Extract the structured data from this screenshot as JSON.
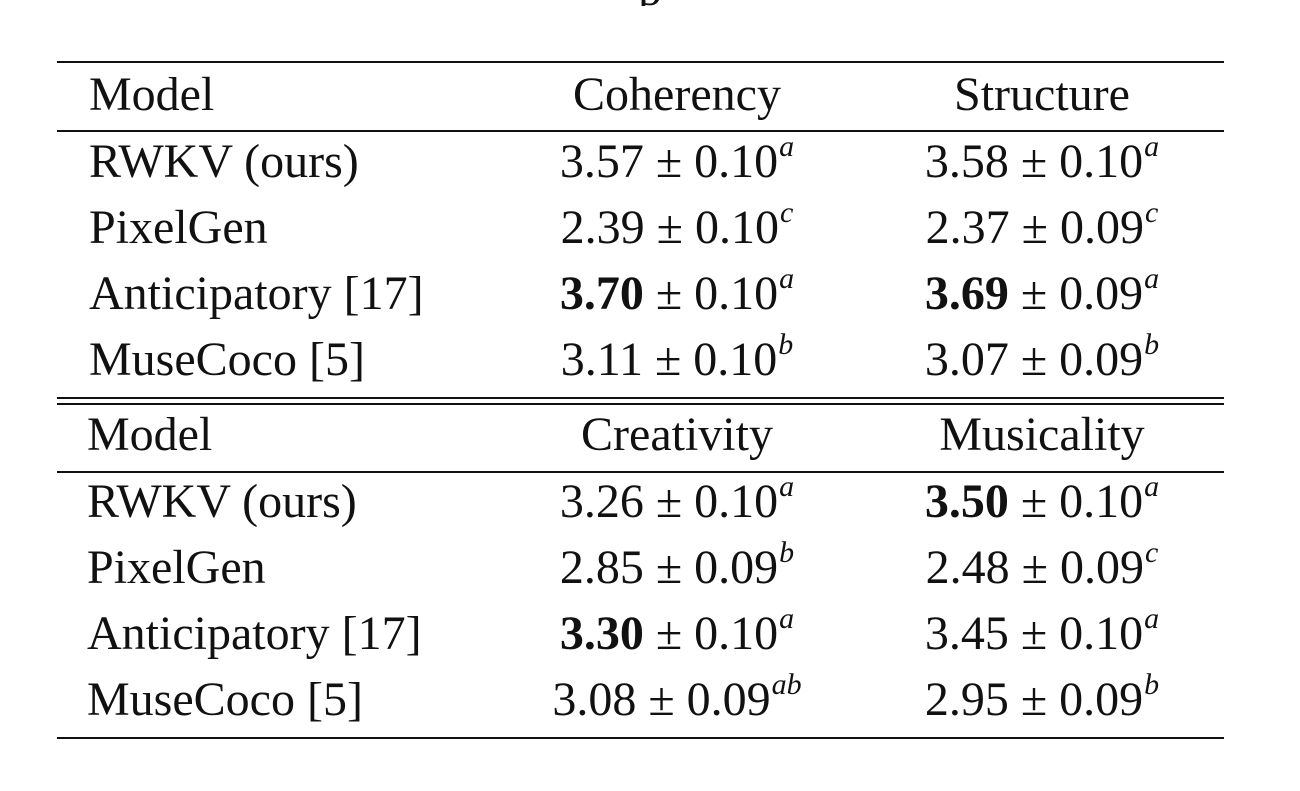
{
  "caption_fragment": "p",
  "tables": [
    {
      "headers": [
        "Model",
        "Coherency",
        "Structure"
      ],
      "rows": [
        {
          "model": "RWKV (ours)",
          "cells": [
            {
              "bold": "",
              "value": "3.57 ± 0.10",
              "sup": "a"
            },
            {
              "bold": "",
              "value": "3.58 ± 0.10",
              "sup": "a"
            }
          ]
        },
        {
          "model": "PixelGen",
          "cells": [
            {
              "bold": "",
              "value": "2.39 ± 0.10",
              "sup": "c"
            },
            {
              "bold": "",
              "value": "2.37 ± 0.09",
              "sup": "c"
            }
          ]
        },
        {
          "model": "Anticipatory [17]",
          "cells": [
            {
              "bold": "3.70",
              "value": " ± 0.10",
              "sup": "a"
            },
            {
              "bold": "3.69",
              "value": " ± 0.09",
              "sup": "a"
            }
          ]
        },
        {
          "model": "MuseCoco [5]",
          "cells": [
            {
              "bold": "",
              "value": "3.11 ± 0.10",
              "sup": "b"
            },
            {
              "bold": "",
              "value": "3.07 ± 0.09",
              "sup": "b"
            }
          ]
        }
      ]
    },
    {
      "headers": [
        "Model",
        "Creativity",
        "Musicality"
      ],
      "rows": [
        {
          "model": "RWKV (ours)",
          "cells": [
            {
              "bold": "",
              "value": "3.26 ± 0.10",
              "sup": "a"
            },
            {
              "bold": "3.50",
              "value": " ± 0.10",
              "sup": "a"
            }
          ]
        },
        {
          "model": "PixelGen",
          "cells": [
            {
              "bold": "",
              "value": "2.85 ± 0.09",
              "sup": "b"
            },
            {
              "bold": "",
              "value": "2.48 ± 0.09",
              "sup": "c"
            }
          ]
        },
        {
          "model": "Anticipatory [17]",
          "cells": [
            {
              "bold": "3.30",
              "value": " ± 0.10",
              "sup": "a"
            },
            {
              "bold": "",
              "value": "3.45 ± 0.10",
              "sup": "a"
            }
          ]
        },
        {
          "model": "MuseCoco [5]",
          "cells": [
            {
              "bold": "",
              "value": "3.08 ± 0.09",
              "sup": "ab"
            },
            {
              "bold": "",
              "value": "2.95 ± 0.09",
              "sup": "b"
            }
          ]
        }
      ]
    }
  ]
}
